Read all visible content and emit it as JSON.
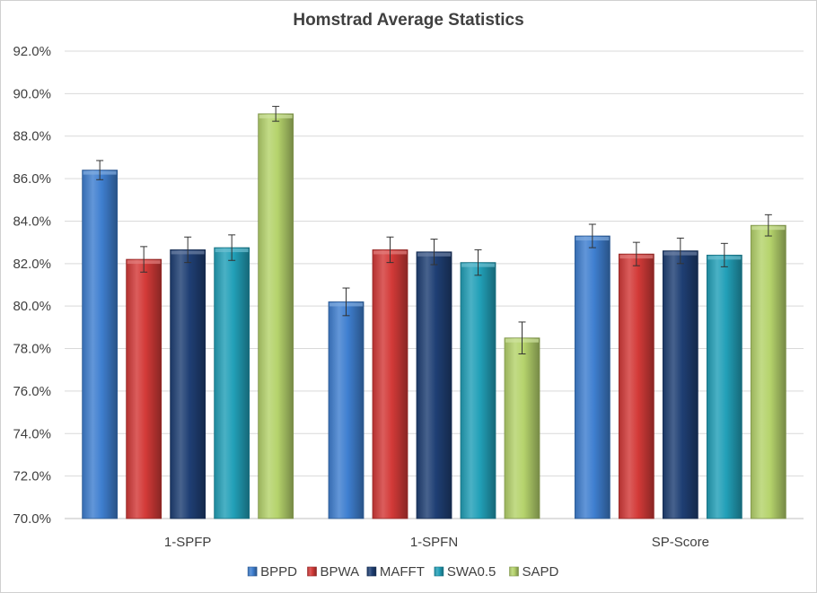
{
  "chart_data": {
    "type": "bar",
    "title": "Homstrad Average Statistics",
    "xlabel": "",
    "ylabel": "",
    "categories": [
      "1-SPFP",
      "1-SPFN",
      "SP-Score"
    ],
    "ylim": [
      70,
      92
    ],
    "yticks": [
      70,
      72,
      74,
      76,
      78,
      80,
      82,
      84,
      86,
      88,
      90,
      92
    ],
    "ytick_labels": [
      "70.0%",
      "72.0%",
      "74.0%",
      "76.0%",
      "78.0%",
      "80.0%",
      "82.0%",
      "84.0%",
      "86.0%",
      "88.0%",
      "90.0%",
      "92.0%"
    ],
    "grid": true,
    "legend": "bottom",
    "series": [
      {
        "name": "BPPD",
        "color": "#3f7fd0",
        "values": [
          86.4,
          80.2,
          83.3
        ],
        "error": [
          0.45,
          0.65,
          0.55
        ]
      },
      {
        "name": "BPWA",
        "color": "#d33a38",
        "values": [
          82.2,
          82.65,
          82.45
        ],
        "error": [
          0.6,
          0.6,
          0.55
        ]
      },
      {
        "name": "MAFFT",
        "color": "#1f3f74",
        "values": [
          82.65,
          82.55,
          82.6
        ],
        "error": [
          0.6,
          0.6,
          0.6
        ]
      },
      {
        "name": "SWA0.5",
        "color": "#22a0b8",
        "values": [
          82.75,
          82.05,
          82.4
        ],
        "error": [
          0.6,
          0.6,
          0.55
        ]
      },
      {
        "name": "SAPD",
        "color": "#b5d36c",
        "values": [
          89.05,
          78.5,
          83.8
        ],
        "error": [
          0.35,
          0.75,
          0.5
        ]
      }
    ]
  }
}
